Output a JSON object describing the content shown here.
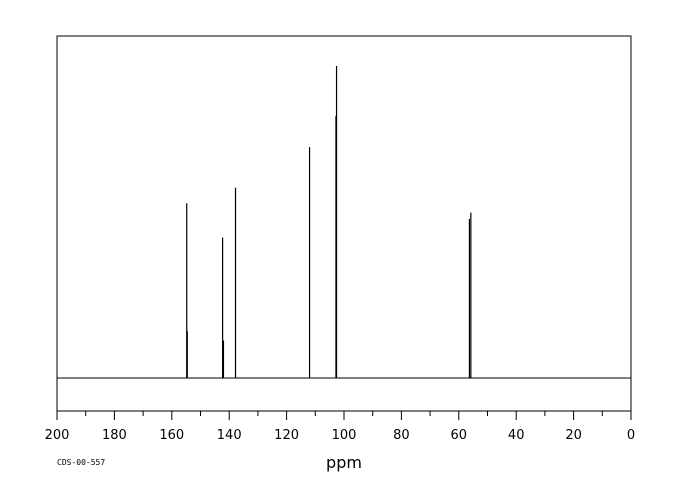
{
  "chart_data": {
    "type": "line",
    "xlabel": "ppm",
    "xlim": [
      200,
      0
    ],
    "x_reversed": true,
    "ylim": [
      0,
      1
    ],
    "grid": false,
    "major_ticks": [
      200,
      180,
      160,
      140,
      120,
      100,
      80,
      60,
      40,
      20,
      0
    ],
    "tick_labels": [
      "200",
      "180",
      "160",
      "140",
      "120",
      "100",
      "80",
      "60",
      "40",
      "20",
      "0"
    ],
    "minor_tick_step": 10,
    "footer_label": "CDS-00-557",
    "series": [
      {
        "peaks": [
          {
            "ppm": 154.8,
            "intensity": 0.56
          },
          {
            "ppm": 154.6,
            "intensity": 0.15
          },
          {
            "ppm": 142.3,
            "intensity": 0.45
          },
          {
            "ppm": 142.0,
            "intensity": 0.12
          },
          {
            "ppm": 137.8,
            "intensity": 0.61
          },
          {
            "ppm": 112.0,
            "intensity": 0.74
          },
          {
            "ppm": 102.6,
            "intensity": 1.0
          },
          {
            "ppm": 102.8,
            "intensity": 0.84
          },
          {
            "ppm": 55.8,
            "intensity": 0.53
          },
          {
            "ppm": 56.3,
            "intensity": 0.51
          }
        ]
      }
    ]
  }
}
